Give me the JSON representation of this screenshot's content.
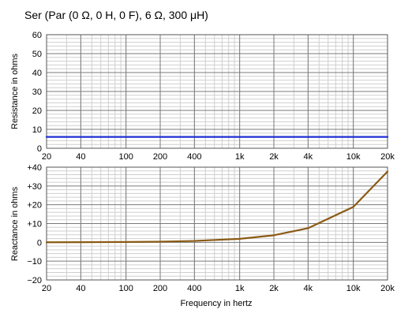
{
  "chart_data": {
    "title": "Ser (Par (0 Ω, 0 H, 0 F), 6 Ω, 300 μH)",
    "xlabel": "Frequency in hertz",
    "x_scale": "log",
    "xlim": [
      20,
      20000
    ],
    "x_ticks": [
      20,
      40,
      100,
      200,
      400,
      1000,
      2000,
      4000,
      10000,
      20000
    ],
    "x_tick_labels": [
      "20",
      "40",
      "100",
      "200",
      "400",
      "1k",
      "2k",
      "4k",
      "10k",
      "20k"
    ],
    "grid": true,
    "panels": [
      {
        "type": "line",
        "ylabel": "Resistance in ohms",
        "ylim": [
          0,
          60
        ],
        "y_ticks": [
          0,
          10,
          20,
          30,
          40,
          50,
          60
        ],
        "y_tick_labels": [
          "0",
          "10",
          "20",
          "30",
          "40",
          "50",
          "60"
        ],
        "series": [
          {
            "color": "#1f2fd6",
            "x": [
              20,
              40,
              100,
              200,
              400,
              1000,
              2000,
              4000,
              10000,
              20000
            ],
            "values": [
              6,
              6,
              6,
              6,
              6,
              6,
              6,
              6,
              6,
              6
            ]
          }
        ]
      },
      {
        "type": "line",
        "ylabel": "Reactance in ohms",
        "ylim": [
          -20,
          40
        ],
        "y_ticks": [
          -20,
          -10,
          0,
          10,
          20,
          30,
          40
        ],
        "y_tick_labels": [
          "−20",
          "−10",
          "0",
          "+10",
          "+20",
          "+30",
          "+40"
        ],
        "series": [
          {
            "color": "#8b5a13",
            "x": [
              20,
              40,
              100,
              200,
              400,
              1000,
              2000,
              4000,
              10000,
              20000
            ],
            "values": [
              0.04,
              0.08,
              0.19,
              0.38,
              0.75,
              1.88,
              3.77,
              7.54,
              18.85,
              37.7
            ]
          }
        ]
      }
    ]
  }
}
